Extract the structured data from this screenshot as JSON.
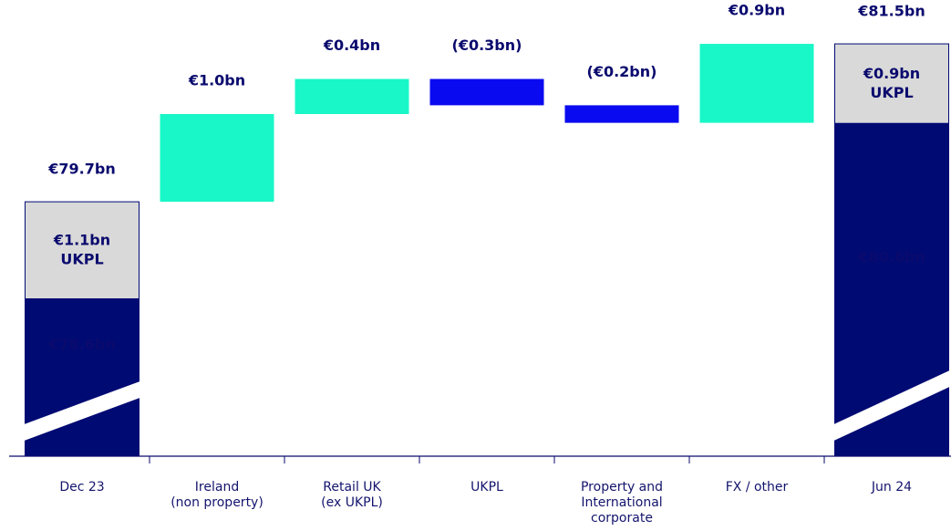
{
  "chart_data": {
    "type": "waterfall",
    "categories": [
      "Dec 23",
      "Ireland\n(non property)",
      "Retail UK\n(ex UKPL)",
      "UKPL",
      "Property and\nInternational\ncorporate",
      "FX / other",
      "Jun 24"
    ],
    "values": [
      79.7,
      1.0,
      0.4,
      -0.3,
      -0.2,
      0.9,
      81.5
    ],
    "value_labels": [
      "€79.7bn",
      "€1.0bn",
      "€0.4bn",
      "(€0.3bn)",
      "(€0.2bn)",
      "€0.9bn",
      "€81.5bn"
    ],
    "totals": [
      true,
      false,
      false,
      false,
      false,
      false,
      true
    ],
    "base_segment": {
      "values": [
        78.6,
        null,
        null,
        null,
        null,
        null,
        80.6
      ],
      "value_labels": [
        "€78.6bn",
        null,
        null,
        null,
        null,
        null,
        "€80.6bn"
      ],
      "color": "#000a73"
    },
    "upper_segment": {
      "name": "UKPL",
      "values": [
        1.1,
        null,
        null,
        null,
        null,
        null,
        0.9
      ],
      "value_labels": [
        "€1.1bn",
        null,
        null,
        null,
        null,
        null,
        "€0.9bn"
      ],
      "color": "#d9d9d9"
    },
    "increase_color": "#19f7c8",
    "decrease_color": "#0a0af0",
    "axis_break": true,
    "ylim": [
      76.8,
      82
    ]
  }
}
